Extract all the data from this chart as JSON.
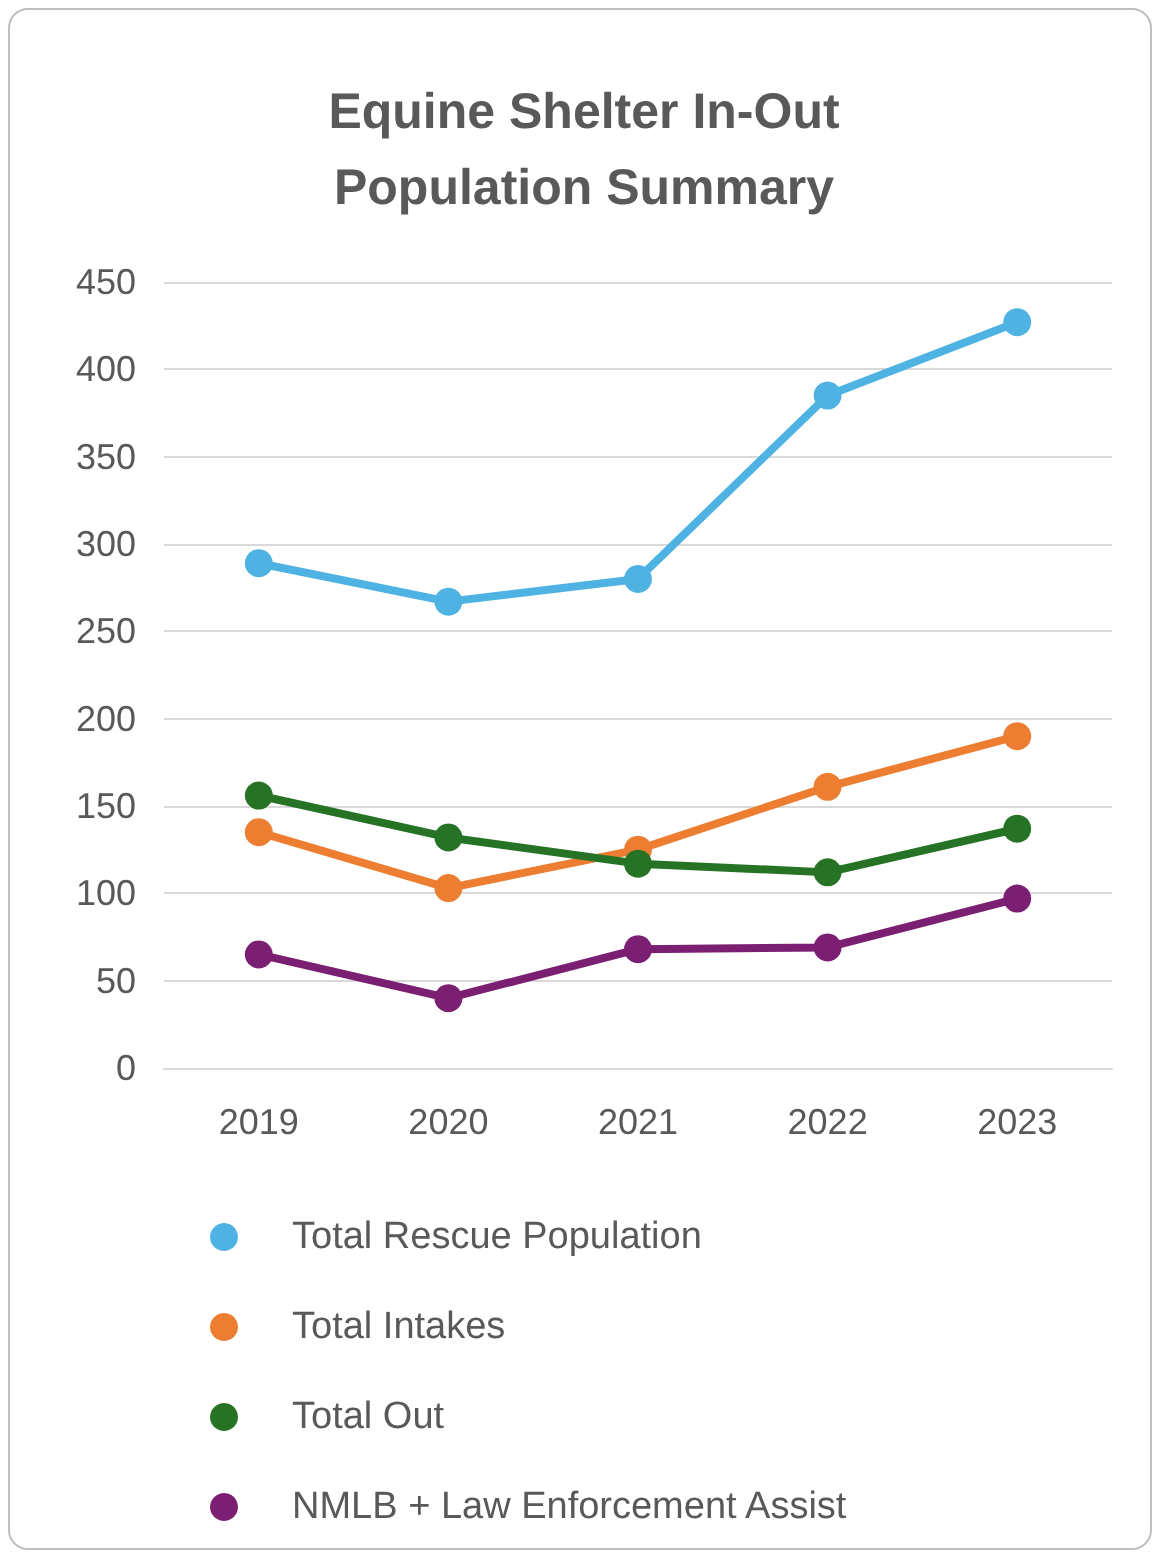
{
  "chart_data": {
    "type": "line",
    "title": "Equine Shelter In-Out\nPopulation Summary",
    "categories": [
      "2019",
      "2020",
      "2021",
      "2022",
      "2023"
    ],
    "series": [
      {
        "name": "Total Rescue Population",
        "color": "#4eb3e3",
        "values": [
          289,
          267,
          280,
          385,
          427
        ]
      },
      {
        "name": "Total Intakes",
        "color": "#ed7d31",
        "values": [
          135,
          103,
          125,
          161,
          190
        ]
      },
      {
        "name": "Total Out",
        "color": "#267326",
        "values": [
          156,
          132,
          117,
          112,
          137
        ]
      },
      {
        "name": "NMLB + Law Enforcement Assist",
        "color": "#7b1f72",
        "values": [
          65,
          40,
          68,
          69,
          97
        ]
      }
    ],
    "ylim": [
      0,
      450
    ],
    "yticks": [
      0,
      50,
      100,
      150,
      200,
      250,
      300,
      350,
      400,
      450
    ],
    "grid": "y",
    "legend": "bottom",
    "marker": "circle",
    "line_style": "solid"
  }
}
